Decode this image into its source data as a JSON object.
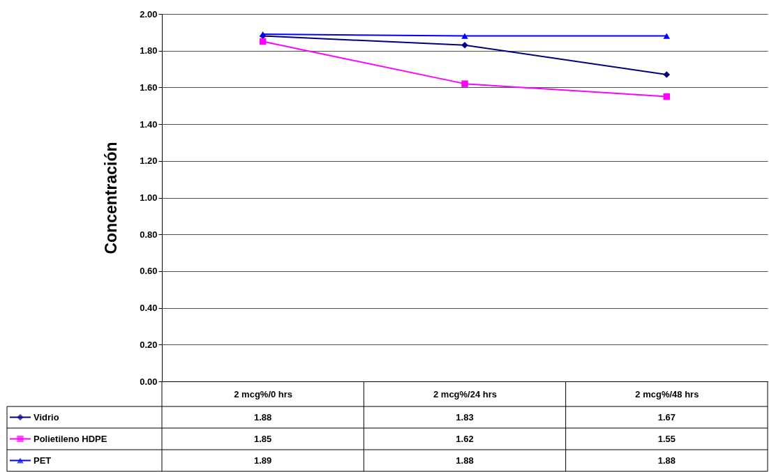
{
  "chart_data": {
    "type": "line",
    "ylabel": "Concentración",
    "categories": [
      "2 mcg%/0 hrs",
      "2 mcg%/24 hrs",
      "2 mcg%/48 hrs"
    ],
    "series": [
      {
        "name": "Vidrio",
        "color": "#000080",
        "marker": "diamond",
        "values": [
          1.88,
          1.83,
          1.67
        ]
      },
      {
        "name": "Polietileno HDPE",
        "color": "#ff00ff",
        "marker": "square",
        "values": [
          1.85,
          1.62,
          1.55
        ]
      },
      {
        "name": "PET",
        "color": "#0000ff",
        "marker": "triangle",
        "values": [
          1.89,
          1.88,
          1.88
        ]
      }
    ],
    "ylim": [
      0,
      2
    ],
    "yticks": [
      {
        "value": 0,
        "label": "0.00"
      },
      {
        "value": 0.2,
        "label": "0.20"
      },
      {
        "value": 0.4,
        "label": "0.40"
      },
      {
        "value": 0.6,
        "label": "0.60"
      },
      {
        "value": 0.8,
        "label": "0.80"
      },
      {
        "value": 1,
        "label": "1.00"
      },
      {
        "value": 1.2,
        "label": "1.20"
      },
      {
        "value": 1.4,
        "label": "1.40"
      },
      {
        "value": 1.6,
        "label": "1.60"
      },
      {
        "value": 1.8,
        "label": "1.80"
      },
      {
        "value": 2,
        "label": "2.00"
      }
    ],
    "grid": "y",
    "legend": "bottom",
    "data_labels": true
  }
}
